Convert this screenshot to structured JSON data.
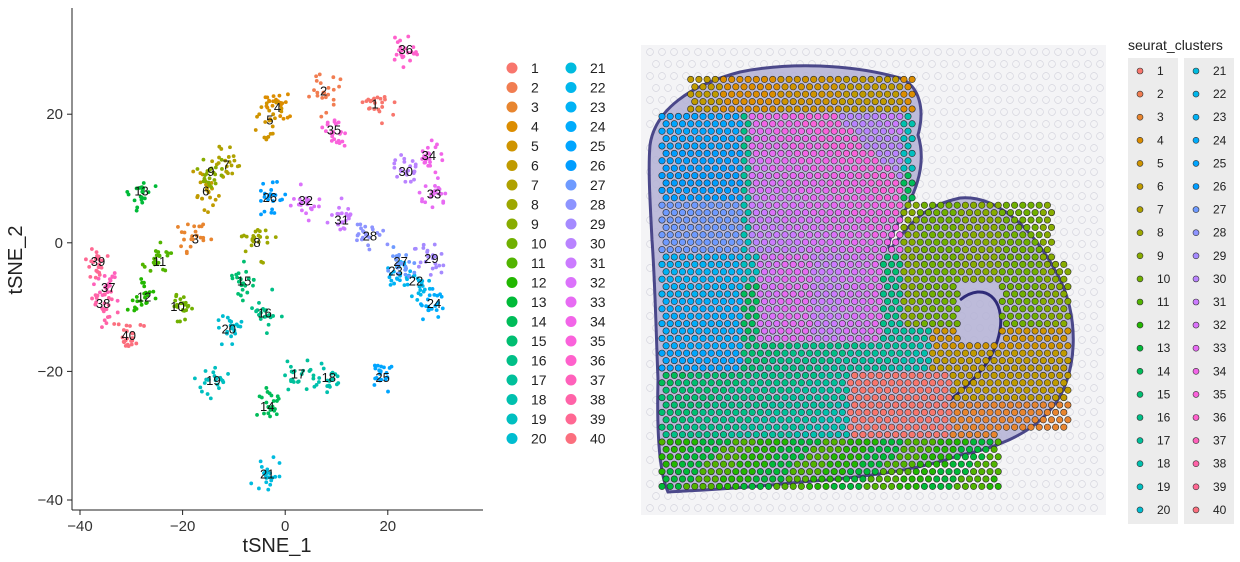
{
  "chart_data": [
    {
      "type": "scatter",
      "title": "",
      "xlabel": "tSNE_1",
      "ylabel": "tSNE_2",
      "xlim": [
        -41,
        37
      ],
      "ylim": [
        -41,
        35
      ],
      "xticks": [
        -40,
        -20,
        0,
        20
      ],
      "yticks": [
        -40,
        -20,
        0,
        20
      ],
      "xtick_labels": [
        "−40",
        "−20",
        "0",
        "20"
      ],
      "ytick_labels": [
        "−40",
        "−20",
        "0",
        "20"
      ],
      "grid": false,
      "legend_position": "right",
      "cluster_labels": [
        {
          "label": "1",
          "x": 17.5,
          "y": 21.5
        },
        {
          "label": "2",
          "x": 7.5,
          "y": 23.5
        },
        {
          "label": "3",
          "x": -17.5,
          "y": 0.5
        },
        {
          "label": "4",
          "x": -1.5,
          "y": 21
        },
        {
          "label": "5",
          "x": -3,
          "y": 19
        },
        {
          "label": "6",
          "x": -15.5,
          "y": 8
        },
        {
          "label": "7",
          "x": -11.5,
          "y": 12
        },
        {
          "label": "8",
          "x": -5.5,
          "y": 0
        },
        {
          "label": "9",
          "x": -14.5,
          "y": 11
        },
        {
          "label": "10",
          "x": -21,
          "y": -10
        },
        {
          "label": "11",
          "x": -24.5,
          "y": -3
        },
        {
          "label": "12",
          "x": -27.5,
          "y": -8.5
        },
        {
          "label": "13",
          "x": -28,
          "y": 8
        },
        {
          "label": "14",
          "x": -3.5,
          "y": -25.5
        },
        {
          "label": "15",
          "x": -8,
          "y": -6
        },
        {
          "label": "16",
          "x": -4,
          "y": -11
        },
        {
          "label": "17",
          "x": 2.5,
          "y": -20.5
        },
        {
          "label": "18",
          "x": 8.5,
          "y": -21
        },
        {
          "label": "19",
          "x": -14,
          "y": -21.5
        },
        {
          "label": "20",
          "x": -11,
          "y": -13.5
        },
        {
          "label": "21",
          "x": -3.5,
          "y": -36
        },
        {
          "label": "22",
          "x": 25.5,
          "y": -6
        },
        {
          "label": "23",
          "x": 21.5,
          "y": -4.5
        },
        {
          "label": "24",
          "x": 29,
          "y": -9.5
        },
        {
          "label": "25",
          "x": 19,
          "y": -21
        },
        {
          "label": "26",
          "x": -3,
          "y": 7
        },
        {
          "label": "27",
          "x": 22.5,
          "y": -3
        },
        {
          "label": "28",
          "x": 16.5,
          "y": 1
        },
        {
          "label": "29",
          "x": 28.5,
          "y": -2.5
        },
        {
          "label": "30",
          "x": 23.5,
          "y": 11
        },
        {
          "label": "31",
          "x": 11,
          "y": 3.5
        },
        {
          "label": "32",
          "x": 4,
          "y": 6.5
        },
        {
          "label": "33",
          "x": 29,
          "y": 7.5
        },
        {
          "label": "34",
          "x": 28,
          "y": 13.5
        },
        {
          "label": "35",
          "x": 9.5,
          "y": 17.5
        },
        {
          "label": "36",
          "x": 23.5,
          "y": 30
        },
        {
          "label": "37",
          "x": -34.5,
          "y": -7
        },
        {
          "label": "38",
          "x": -35.5,
          "y": -9.5
        },
        {
          "label": "39",
          "x": -36.5,
          "y": -3
        },
        {
          "label": "40",
          "x": -30.5,
          "y": -14.5
        }
      ],
      "legend_title": "",
      "legend_entries": [
        "1",
        "2",
        "3",
        "4",
        "5",
        "6",
        "7",
        "8",
        "9",
        "10",
        "11",
        "12",
        "13",
        "14",
        "15",
        "16",
        "17",
        "18",
        "19",
        "20",
        "21",
        "22",
        "23",
        "24",
        "25",
        "26",
        "27",
        "28",
        "29",
        "30",
        "31",
        "32",
        "33",
        "34",
        "35",
        "36",
        "37",
        "38",
        "39",
        "40"
      ]
    },
    {
      "type": "scatter",
      "title": "",
      "description_type": "spatial",
      "legend_title": "seurat_clusters",
      "legend_position": "right",
      "legend_entries": [
        "1",
        "2",
        "3",
        "4",
        "5",
        "6",
        "7",
        "8",
        "9",
        "10",
        "11",
        "12",
        "13",
        "14",
        "15",
        "16",
        "17",
        "18",
        "19",
        "20",
        "21",
        "22",
        "23",
        "24",
        "25",
        "26",
        "27",
        "28",
        "29",
        "30",
        "31",
        "32",
        "33",
        "34",
        "35",
        "36",
        "37",
        "38",
        "39",
        "40"
      ]
    }
  ],
  "palette": [
    "#f8766d",
    "#f17d51",
    "#e8852f",
    "#dc8d00",
    "#cf9400",
    "#c09b00",
    "#afa100",
    "#9da700",
    "#88ac00",
    "#70b000",
    "#52b400",
    "#22b700",
    "#00ba38",
    "#00bc59",
    "#00be71",
    "#00bf87",
    "#00c09b",
    "#00c0ae",
    "#00bfc0",
    "#00bdd0",
    "#00bbdf",
    "#00b7ec",
    "#00b2f5",
    "#00acfc",
    "#00a5ff",
    "#009dff",
    "#6e9aff",
    "#8d94ff",
    "#a58aff",
    "#b983ff",
    "#cb7bff",
    "#db72fb",
    "#e76bf3",
    "#f265e8",
    "#fa62db",
    "#ff61cc",
    "#ff61bb",
    "#ff63a8",
    "#ff6893",
    "#fb6f7e"
  ]
}
